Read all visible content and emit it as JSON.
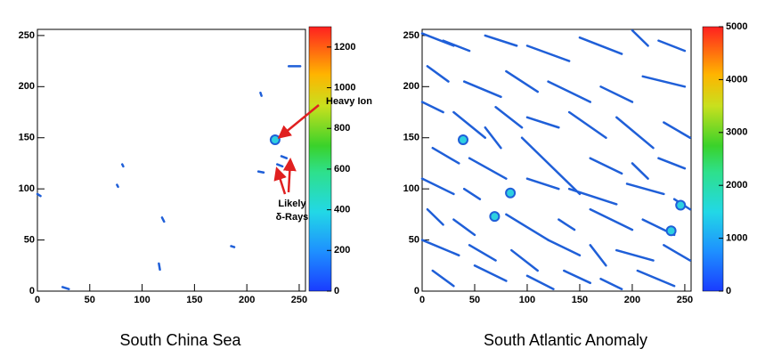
{
  "chart_data": [
    {
      "type": "track-map",
      "title": "South China Sea",
      "xlim": [
        0,
        256
      ],
      "ylim": [
        0,
        256
      ],
      "xticks": [
        0,
        50,
        100,
        150,
        200,
        250
      ],
      "yticks": [
        0,
        50,
        100,
        150,
        200,
        250
      ],
      "zlim": [
        0,
        1300
      ],
      "zticks": [
        0,
        200,
        400,
        600,
        800,
        1000,
        1200
      ],
      "color": "#1f5fd8",
      "tracks": [
        {
          "x": [
            240,
            251
          ],
          "y": [
            220,
            220
          ]
        },
        {
          "x": [
            213,
            214
          ],
          "y": [
            194,
            191
          ]
        },
        {
          "x": [
            233,
            238
          ],
          "y": [
            132,
            130
          ]
        },
        {
          "x": [
            229,
            234
          ],
          "y": [
            124,
            122
          ]
        },
        {
          "x": [
            211,
            216
          ],
          "y": [
            117,
            116
          ]
        },
        {
          "x": [
            81,
            82
          ],
          "y": [
            124,
            122
          ]
        },
        {
          "x": [
            76,
            77
          ],
          "y": [
            104,
            102
          ]
        },
        {
          "x": [
            119,
            121
          ],
          "y": [
            72,
            68
          ]
        },
        {
          "x": [
            185,
            188
          ],
          "y": [
            44,
            43
          ]
        },
        {
          "x": [
            116,
            117
          ],
          "y": [
            27,
            21
          ]
        },
        {
          "x": [
            24,
            30
          ],
          "y": [
            4,
            2
          ]
        },
        {
          "x": [
            0,
            3
          ],
          "y": [
            95,
            93
          ]
        }
      ],
      "spots": {
        "x": [
          227
        ],
        "y": [
          148
        ]
      },
      "annotations": [
        "Heavy Ion",
        "Likely",
        "δ-Rays"
      ]
    },
    {
      "type": "track-map",
      "title": "South Atlantic Anomaly",
      "xlim": [
        0,
        256
      ],
      "ylim": [
        0,
        256
      ],
      "xticks": [
        0,
        50,
        100,
        150,
        200,
        250
      ],
      "yticks": [
        0,
        50,
        100,
        150,
        200,
        250
      ],
      "zlim": [
        0,
        5000
      ],
      "zticks": [
        0,
        1000,
        2000,
        3000,
        4000,
        5000
      ],
      "color": "#1f5fd8",
      "tracks": [
        {
          "x": [
            0,
            30
          ],
          "y": [
            252,
            240
          ]
        },
        {
          "x": [
            20,
            45
          ],
          "y": [
            245,
            235
          ]
        },
        {
          "x": [
            60,
            90
          ],
          "y": [
            250,
            240
          ]
        },
        {
          "x": [
            100,
            140
          ],
          "y": [
            240,
            225
          ]
        },
        {
          "x": [
            150,
            190
          ],
          "y": [
            248,
            232
          ]
        },
        {
          "x": [
            200,
            215
          ],
          "y": [
            255,
            240
          ]
        },
        {
          "x": [
            225,
            250
          ],
          "y": [
            245,
            235
          ]
        },
        {
          "x": [
            5,
            25
          ],
          "y": [
            220,
            205
          ]
        },
        {
          "x": [
            40,
            75
          ],
          "y": [
            205,
            190
          ]
        },
        {
          "x": [
            80,
            110
          ],
          "y": [
            215,
            195
          ]
        },
        {
          "x": [
            120,
            160
          ],
          "y": [
            205,
            185
          ]
        },
        {
          "x": [
            170,
            200
          ],
          "y": [
            200,
            185
          ]
        },
        {
          "x": [
            210,
            250
          ],
          "y": [
            210,
            200
          ]
        },
        {
          "x": [
            0,
            20
          ],
          "y": [
            185,
            175
          ]
        },
        {
          "x": [
            30,
            60
          ],
          "y": [
            175,
            150
          ]
        },
        {
          "x": [
            70,
            95
          ],
          "y": [
            180,
            160
          ]
        },
        {
          "x": [
            100,
            130
          ],
          "y": [
            170,
            160
          ]
        },
        {
          "x": [
            140,
            175
          ],
          "y": [
            175,
            150
          ]
        },
        {
          "x": [
            185,
            220
          ],
          "y": [
            170,
            140
          ]
        },
        {
          "x": [
            230,
            255
          ],
          "y": [
            165,
            150
          ]
        },
        {
          "x": [
            10,
            35
          ],
          "y": [
            140,
            125
          ]
        },
        {
          "x": [
            45,
            80
          ],
          "y": [
            130,
            110
          ]
        },
        {
          "x": [
            95,
            150
          ],
          "y": [
            150,
            95
          ]
        },
        {
          "x": [
            160,
            190
          ],
          "y": [
            130,
            115
          ]
        },
        {
          "x": [
            200,
            215
          ],
          "y": [
            125,
            110
          ]
        },
        {
          "x": [
            225,
            250
          ],
          "y": [
            130,
            120
          ]
        },
        {
          "x": [
            0,
            30
          ],
          "y": [
            110,
            95
          ]
        },
        {
          "x": [
            40,
            55
          ],
          "y": [
            100,
            90
          ]
        },
        {
          "x": [
            100,
            130
          ],
          "y": [
            110,
            100
          ]
        },
        {
          "x": [
            140,
            185
          ],
          "y": [
            100,
            85
          ]
        },
        {
          "x": [
            195,
            230
          ],
          "y": [
            105,
            95
          ]
        },
        {
          "x": [
            5,
            20
          ],
          "y": [
            80,
            65
          ]
        },
        {
          "x": [
            30,
            50
          ],
          "y": [
            70,
            55
          ]
        },
        {
          "x": [
            80,
            120
          ],
          "y": [
            75,
            50
          ]
        },
        {
          "x": [
            130,
            145
          ],
          "y": [
            70,
            60
          ]
        },
        {
          "x": [
            160,
            200
          ],
          "y": [
            80,
            60
          ]
        },
        {
          "x": [
            210,
            240
          ],
          "y": [
            70,
            55
          ]
        },
        {
          "x": [
            0,
            35
          ],
          "y": [
            50,
            35
          ]
        },
        {
          "x": [
            45,
            70
          ],
          "y": [
            45,
            30
          ]
        },
        {
          "x": [
            85,
            110
          ],
          "y": [
            40,
            20
          ]
        },
        {
          "x": [
            120,
            150
          ],
          "y": [
            50,
            35
          ]
        },
        {
          "x": [
            160,
            175
          ],
          "y": [
            45,
            25
          ]
        },
        {
          "x": [
            185,
            220
          ],
          "y": [
            40,
            30
          ]
        },
        {
          "x": [
            230,
            255
          ],
          "y": [
            45,
            30
          ]
        },
        {
          "x": [
            10,
            30
          ],
          "y": [
            20,
            5
          ]
        },
        {
          "x": [
            50,
            80
          ],
          "y": [
            25,
            10
          ]
        },
        {
          "x": [
            100,
            125
          ],
          "y": [
            15,
            2
          ]
        },
        {
          "x": [
            135,
            160
          ],
          "y": [
            20,
            8
          ]
        },
        {
          "x": [
            170,
            190
          ],
          "y": [
            12,
            2
          ]
        },
        {
          "x": [
            205,
            240
          ],
          "y": [
            20,
            5
          ]
        },
        {
          "x": [
            240,
            255
          ],
          "y": [
            90,
            80
          ]
        },
        {
          "x": [
            60,
            75
          ],
          "y": [
            160,
            140
          ]
        }
      ],
      "spots": {
        "x": [
          39,
          84,
          69,
          246,
          237
        ],
        "y": [
          148,
          96,
          73,
          84,
          59
        ]
      }
    }
  ]
}
